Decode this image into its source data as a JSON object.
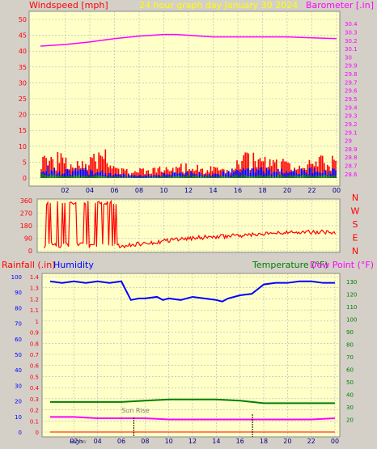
{
  "colors": {
    "wind_axis": "#ff0000",
    "baro_axis": "#ff00ff",
    "title": "#ffff00",
    "humidity_axis": "#0000ff",
    "temp_axis": "#008000",
    "plot_bg": "#ffffc8",
    "grid": "#b4b4b4"
  },
  "chart_data": [
    {
      "type": "bar",
      "title": "24 hour graph day   January 30 2024",
      "left_axis_label": "Windspeed [mph]",
      "right_axis_label": "Barometer [.in]",
      "x_labels": [
        "02",
        "04",
        "06",
        "08",
        "10",
        "12",
        "14",
        "16",
        "18",
        "20",
        "22",
        "00"
      ],
      "y_left_ticks": [
        "0",
        "5",
        "10",
        "15",
        "20",
        "25",
        "30",
        "35",
        "40",
        "45",
        "50"
      ],
      "y_left_range": [
        0,
        50
      ],
      "y_right_ticks": [
        "28.6",
        "28.7",
        "28.8",
        "28.9",
        "29",
        "29.1",
        "29.2",
        "29.3",
        "29.4",
        "29.5",
        "29.6",
        "29.7",
        "29.8",
        "29.9",
        "30",
        "30.1",
        "30.2",
        "30.3",
        "30.4"
      ],
      "y_right_range": [
        28.55,
        30.45
      ],
      "grid": true,
      "series": [
        {
          "role": "gust",
          "color": "#ff0000",
          "x": [
            0,
            2,
            4,
            5.5,
            6,
            7.5,
            8,
            10,
            12,
            14,
            15.5,
            16,
            16.5,
            18,
            20,
            21.5,
            22,
            24
          ],
          "y": [
            8,
            6,
            6,
            8,
            3,
            2,
            2.5,
            3,
            4,
            3,
            2,
            6,
            7,
            6,
            5,
            3,
            6,
            6
          ]
        },
        {
          "role": "average",
          "color": "#0000ff",
          "x": [
            0,
            2,
            4,
            6,
            8,
            10,
            12,
            14,
            16,
            18,
            20,
            22,
            24
          ],
          "y": [
            4,
            3,
            3,
            1.5,
            1,
            1.5,
            2,
            1.5,
            3,
            3,
            2.5,
            3,
            3
          ]
        },
        {
          "role": "calm",
          "color": "#008000",
          "x": [
            0,
            2,
            4,
            6,
            8,
            10,
            12,
            14,
            16,
            18,
            20,
            22,
            24
          ],
          "y": [
            1.5,
            1,
            1,
            0.5,
            0.3,
            0.5,
            1,
            0.5,
            1,
            1,
            1,
            1,
            1
          ]
        },
        {
          "role": "barometer",
          "color": "#ff00ff",
          "type": "line",
          "x": [
            0,
            2,
            4,
            6,
            8,
            10,
            11,
            12,
            14,
            16,
            18,
            20,
            22,
            24
          ],
          "y": [
            30.13,
            30.15,
            30.18,
            30.22,
            30.25,
            30.27,
            30.27,
            30.26,
            30.24,
            30.24,
            30.24,
            30.24,
            30.23,
            30.22
          ]
        }
      ]
    },
    {
      "type": "line",
      "x_labels": [],
      "y_ticks": [
        "0",
        "90",
        "180",
        "270",
        "360"
      ],
      "y_range": [
        0,
        360
      ],
      "direction_labels": [
        "N",
        "W",
        "S",
        "E",
        "N"
      ],
      "grid": true,
      "series": [
        {
          "role": "wind_direction",
          "color": "#ff0000",
          "x": [
            0.3,
            1,
            1.5,
            2,
            2.5,
            3,
            3.5,
            4,
            4.5,
            5,
            5.5,
            6,
            6.5,
            7,
            8,
            9,
            10,
            11,
            12,
            13,
            14,
            15,
            16,
            17,
            18,
            19,
            20,
            21,
            22,
            23,
            24
          ],
          "y": [
            200,
            240,
            120,
            180,
            150,
            100,
            90,
            80,
            60,
            40,
            30,
            40,
            30,
            40,
            50,
            60,
            70,
            80,
            90,
            95,
            100,
            105,
            110,
            115,
            120,
            125,
            130,
            130,
            135,
            135,
            130
          ]
        }
      ]
    },
    {
      "type": "line",
      "left_axis_label": "Rainfall (.in)",
      "left_axis_label_2": "Humidity",
      "right_axis_label": "Temperature (°F)",
      "right_axis_label_2": "Dew Point (°F)",
      "x_labels": [
        "02",
        "04",
        "06",
        "08",
        "10",
        "12",
        "14",
        "16",
        "18",
        "20",
        "22",
        "00"
      ],
      "rain_ticks": [
        "0",
        "0.1",
        "0.2",
        "0.3",
        "0.4",
        "0.5",
        "0.6",
        "0.7",
        "0.8",
        "0.9",
        "1",
        "1.1",
        "1.2",
        "1.3",
        "1.4"
      ],
      "rain_range": [
        0,
        1.4
      ],
      "humidity_ticks": [
        "0",
        "10",
        "20",
        "30",
        "40",
        "50",
        "60",
        "70",
        "80",
        "90",
        "100"
      ],
      "humidity_range": [
        0,
        100
      ],
      "temp_ticks": [
        "20",
        "30",
        "40",
        "50",
        "60",
        "70",
        "80",
        "90",
        "100",
        "110",
        "120",
        "130"
      ],
      "temp_range": [
        10,
        134
      ],
      "annotations": [
        {
          "text": "Sun Rise",
          "x": 7.05
        },
        {
          "text": "High",
          "x": 2.2
        },
        {
          "text": "Low",
          "x": 2.6
        }
      ],
      "grid": true,
      "series": [
        {
          "role": "humidity",
          "color": "#0000ff",
          "axis": "humidity",
          "x": [
            0,
            1,
            2,
            3,
            4,
            5,
            6,
            6.4,
            6.8,
            7.5,
            8,
            9,
            9.5,
            10,
            11,
            12,
            13,
            14,
            14.5,
            15,
            16,
            17,
            18,
            19,
            20,
            21,
            22,
            23,
            24
          ],
          "y": [
            97,
            96,
            97,
            96,
            97,
            96,
            97,
            91,
            85,
            86,
            86,
            87,
            85,
            86,
            85,
            87,
            86,
            85,
            84,
            86,
            88,
            89,
            95,
            96,
            96,
            97,
            97,
            96,
            96
          ]
        },
        {
          "role": "temperature",
          "color": "#008000",
          "axis": "temp",
          "x": [
            0,
            2,
            4,
            6,
            8,
            10,
            12,
            14,
            16,
            18,
            20,
            22,
            24
          ],
          "y": [
            34,
            34,
            34,
            34,
            35,
            36,
            36,
            36,
            35,
            33,
            33,
            33,
            33
          ]
        },
        {
          "role": "dew_point",
          "color": "#ff00ff",
          "axis": "temp",
          "x": [
            0,
            2,
            4,
            6,
            8,
            10,
            12,
            14,
            16,
            18,
            20,
            22,
            24
          ],
          "y": [
            22,
            22,
            21,
            21,
            21,
            20,
            20,
            20,
            20,
            20,
            20,
            20,
            21
          ]
        },
        {
          "role": "rainfall",
          "color": "#ff0000",
          "axis": "rain",
          "x": [
            0,
            24
          ],
          "y": [
            0,
            0
          ]
        }
      ]
    }
  ]
}
